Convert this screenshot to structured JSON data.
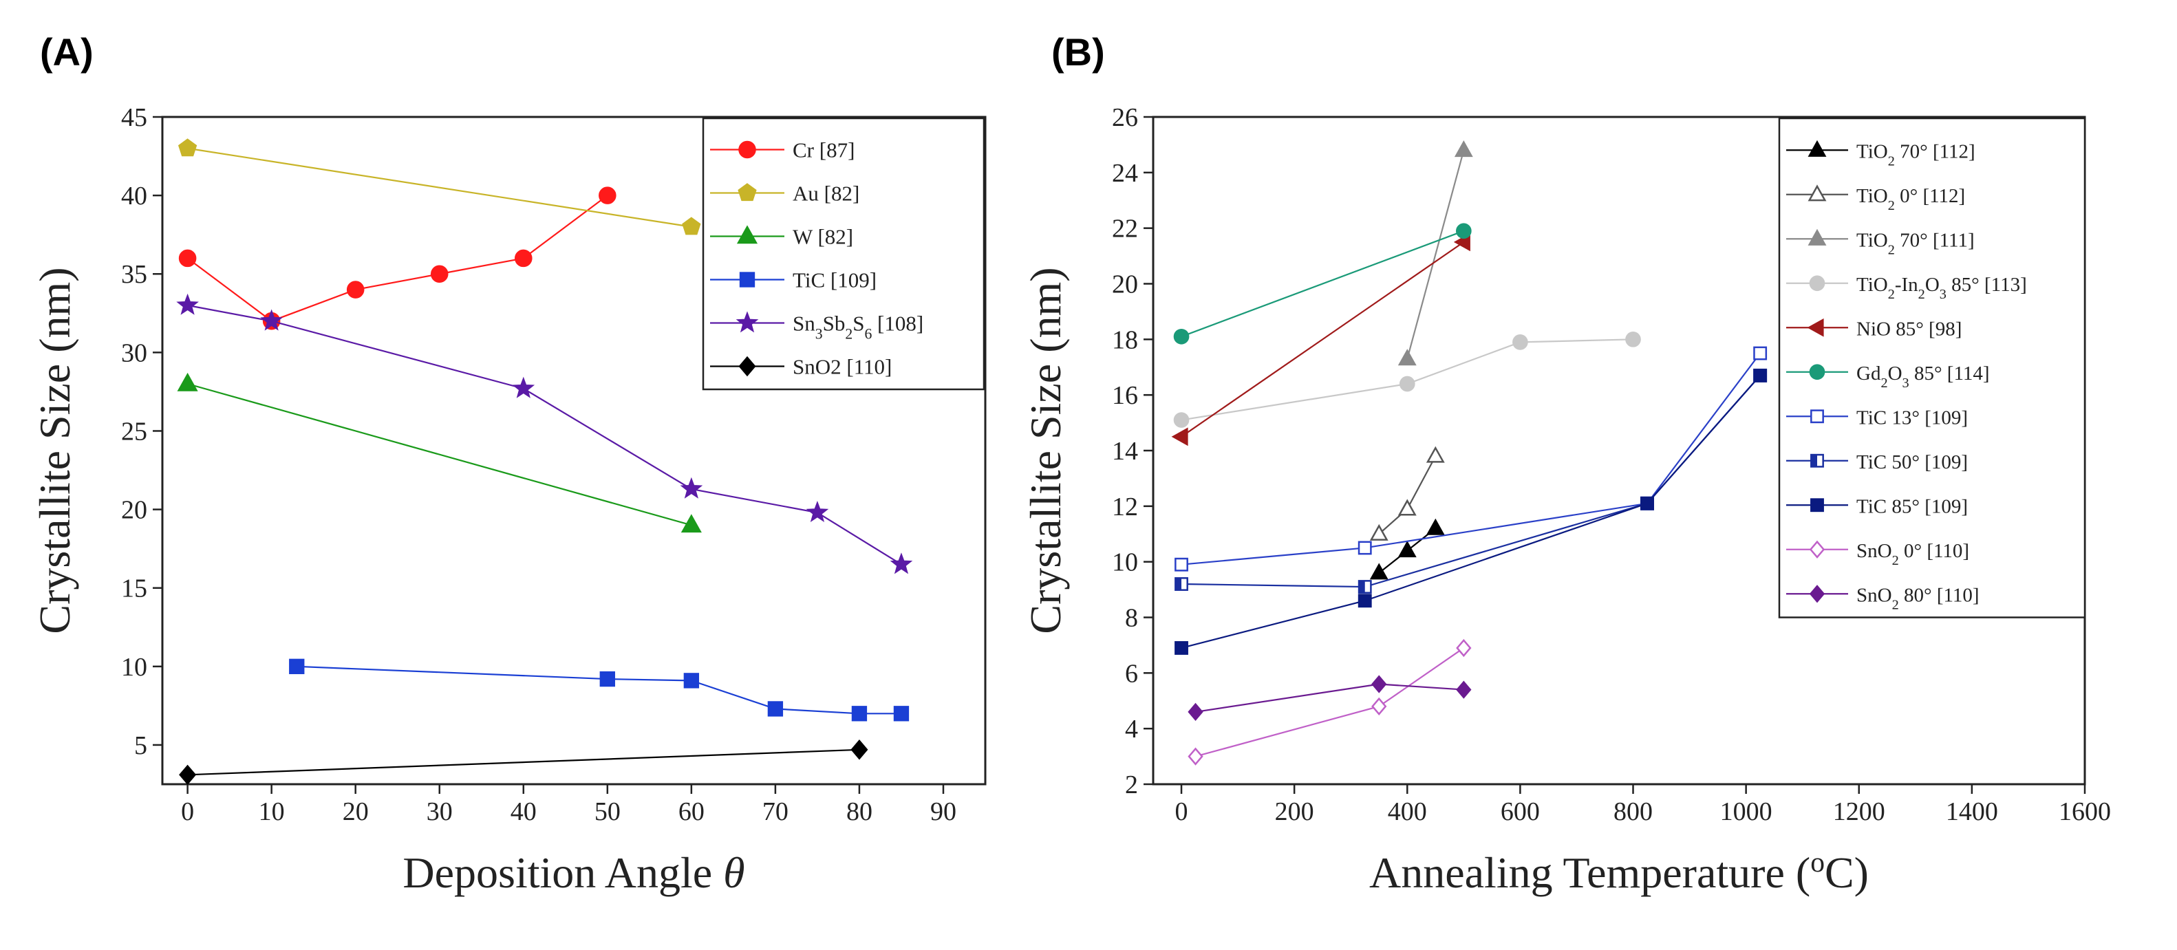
{
  "chart_data": [
    {
      "panel": "(A)",
      "type": "line",
      "xlabel": "Deposition Angle",
      "xlabel_symbol": "θ",
      "ylabel": "Crystallite Size (nm)",
      "xlim": [
        -3,
        95
      ],
      "ylim": [
        2.5,
        45
      ],
      "xticks": [
        0,
        10,
        20,
        30,
        40,
        50,
        60,
        70,
        80,
        90
      ],
      "yticks": [
        5,
        10,
        15,
        20,
        25,
        30,
        35,
        40,
        45
      ],
      "legend_position": "top-right",
      "series": [
        {
          "name": "Cr [87]",
          "label_parts": [
            {
              "t": "Cr [87]"
            }
          ],
          "color": "#ff1a1a",
          "marker": "circle",
          "fill": "solid",
          "x": [
            0,
            10,
            20,
            30,
            40,
            50
          ],
          "y": [
            36,
            32,
            34,
            35,
            36,
            40
          ]
        },
        {
          "name": "Au [82]",
          "label_parts": [
            {
              "t": "Au [82]"
            }
          ],
          "color": "#c8b428",
          "marker": "pentagon",
          "fill": "solid",
          "x": [
            0,
            60
          ],
          "y": [
            43,
            38
          ]
        },
        {
          "name": "W [82]",
          "label_parts": [
            {
              "t": "W [82]"
            }
          ],
          "color": "#1a9a1a",
          "marker": "triangle",
          "fill": "solid",
          "x": [
            0,
            60
          ],
          "y": [
            28,
            19
          ]
        },
        {
          "name": "TiC [109]",
          "label_parts": [
            {
              "t": "TiC [109]"
            }
          ],
          "color": "#1a3fd4",
          "marker": "square",
          "fill": "solid",
          "x": [
            13,
            50,
            60,
            70,
            80,
            85
          ],
          "y": [
            10,
            9.2,
            9.1,
            7.3,
            7.0,
            7.0
          ]
        },
        {
          "name": "Sn3Sb2S6 [108]",
          "label_parts": [
            {
              "t": "Sn"
            },
            {
              "t": "3",
              "sub": true
            },
            {
              "t": "Sb"
            },
            {
              "t": "2",
              "sub": true
            },
            {
              "t": "S"
            },
            {
              "t": "6",
              "sub": true
            },
            {
              "t": " [108]"
            }
          ],
          "color": "#5a1aa6",
          "marker": "star",
          "fill": "solid",
          "x": [
            0,
            10,
            40,
            60,
            75,
            85
          ],
          "y": [
            33,
            32,
            27.7,
            21.3,
            19.8,
            16.5
          ]
        },
        {
          "name": "SnO2 [110]",
          "label_parts": [
            {
              "t": "SnO2 [110]"
            }
          ],
          "color": "#000000",
          "marker": "diamond",
          "fill": "solid",
          "x": [
            0,
            80
          ],
          "y": [
            3.1,
            4.7
          ]
        }
      ]
    },
    {
      "panel": "(B)",
      "type": "line",
      "xlabel": "Annealing Temperature (",
      "xlabel_sup": "o",
      "xlabel_end": "C)",
      "ylabel": "Crystallite Size (nm)",
      "xlim": [
        -50,
        1600
      ],
      "ylim": [
        2,
        26
      ],
      "xticks": [
        0,
        200,
        400,
        600,
        800,
        1000,
        1200,
        1400,
        1600
      ],
      "yticks": [
        2,
        4,
        6,
        8,
        10,
        12,
        14,
        16,
        18,
        20,
        22,
        24,
        26
      ],
      "legend_position": "top-right",
      "series": [
        {
          "name": "TiO2 70° [112]",
          "label_parts": [
            {
              "t": "TiO"
            },
            {
              "t": "2",
              "sub": true
            },
            {
              "t": " 70°  [112]"
            }
          ],
          "color": "#000000",
          "marker": "triangle",
          "fill": "solid",
          "x": [
            350,
            400,
            450
          ],
          "y": [
            9.6,
            10.4,
            11.2
          ]
        },
        {
          "name": "TiO2 0° [112]",
          "label_parts": [
            {
              "t": "TiO"
            },
            {
              "t": "2",
              "sub": true
            },
            {
              "t": " 0°  [112]"
            }
          ],
          "color": "#555555",
          "marker": "triangle",
          "fill": "open",
          "x": [
            350,
            400,
            450
          ],
          "y": [
            11.0,
            11.9,
            13.8
          ]
        },
        {
          "name": "TiO2 70° [111]",
          "label_parts": [
            {
              "t": "TiO"
            },
            {
              "t": "2",
              "sub": true
            },
            {
              "t": " 70°  [111]"
            }
          ],
          "color": "#8a8a8a",
          "marker": "triangle",
          "fill": "solid",
          "x": [
            400,
            500
          ],
          "y": [
            17.3,
            24.8
          ]
        },
        {
          "name": "TiO2-In2O3 85° [113]",
          "label_parts": [
            {
              "t": "TiO"
            },
            {
              "t": "2",
              "sub": true
            },
            {
              "t": "-In"
            },
            {
              "t": "2",
              "sub": true
            },
            {
              "t": "O"
            },
            {
              "t": "3",
              "sub": true
            },
            {
              "t": " 85°  [113]"
            }
          ],
          "color": "#c8c8c8",
          "marker": "circle",
          "fill": "solid",
          "x": [
            0,
            400,
            600,
            800
          ],
          "y": [
            15.1,
            16.4,
            17.9,
            18.0
          ]
        },
        {
          "name": "NiO 85° [98]",
          "label_parts": [
            {
              "t": "NiO 85°  [98]"
            }
          ],
          "color": "#a01a1a",
          "marker": "triangle-left",
          "fill": "solid",
          "x": [
            0,
            500
          ],
          "y": [
            14.5,
            21.5
          ]
        },
        {
          "name": "Gd2O3 85° [114]",
          "label_parts": [
            {
              "t": "Gd"
            },
            {
              "t": "2",
              "sub": true
            },
            {
              "t": "O"
            },
            {
              "t": "3",
              "sub": true
            },
            {
              "t": " 85°  [114]"
            }
          ],
          "color": "#1a9a78",
          "marker": "circle",
          "fill": "solid",
          "x": [
            0,
            500
          ],
          "y": [
            18.1,
            21.9
          ]
        },
        {
          "name": "TiC 13° [109]",
          "label_parts": [
            {
              "t": "TiC 13°  [109]"
            }
          ],
          "color": "#2a40c8",
          "marker": "square",
          "fill": "open",
          "x": [
            0,
            325,
            825,
            1025
          ],
          "y": [
            9.9,
            10.5,
            12.1,
            17.5
          ]
        },
        {
          "name": "TiC 50° [109]",
          "label_parts": [
            {
              "t": "TiC 50°  [109]"
            }
          ],
          "color": "#1a2fa0",
          "marker": "square",
          "fill": "half",
          "x": [
            0,
            325,
            825,
            1025
          ],
          "y": [
            9.2,
            9.1,
            12.1,
            16.7
          ]
        },
        {
          "name": "TiC 85° [109]",
          "label_parts": [
            {
              "t": "TiC 85°  [109]"
            }
          ],
          "color": "#0a1a80",
          "marker": "square",
          "fill": "solid",
          "x": [
            0,
            325,
            825,
            1025
          ],
          "y": [
            6.9,
            8.6,
            12.1,
            16.7
          ]
        },
        {
          "name": "SnO2 0° [110]",
          "label_parts": [
            {
              "t": "SnO"
            },
            {
              "t": "2",
              "sub": true
            },
            {
              "t": " 0°  [110]"
            }
          ],
          "color": "#c060c8",
          "marker": "diamond",
          "fill": "open",
          "x": [
            25,
            350,
            500
          ],
          "y": [
            3.0,
            4.8,
            6.9
          ]
        },
        {
          "name": "SnO2 80° [110]",
          "label_parts": [
            {
              "t": "SnO"
            },
            {
              "t": "2",
              "sub": true
            },
            {
              "t": " 80°  [110]"
            }
          ],
          "color": "#6a1a90",
          "marker": "diamond",
          "fill": "solid",
          "x": [
            25,
            350,
            500
          ],
          "y": [
            4.6,
            5.6,
            5.4
          ]
        }
      ]
    }
  ]
}
